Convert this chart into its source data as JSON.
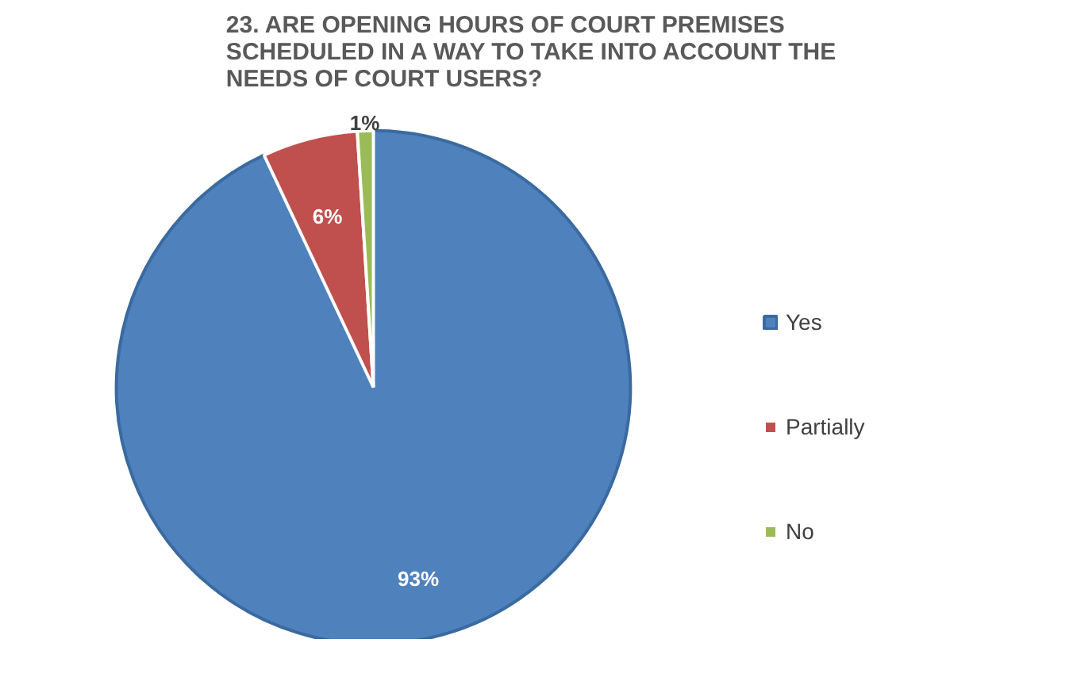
{
  "chart_data": {
    "type": "pie",
    "title": "23. ARE OPENING HOURS OF COURT PREMISES SCHEDULED IN A WAY TO TAKE INTO ACCOUNT THE NEEDS OF COURT USERS?",
    "categories": [
      "Yes",
      "Partially",
      "No"
    ],
    "values": [
      93,
      6,
      1
    ],
    "colors": [
      "#4f81bd",
      "#c0504d",
      "#9bbb59"
    ],
    "value_labels": [
      "93%",
      "6%",
      "1%"
    ],
    "legend": "right"
  }
}
